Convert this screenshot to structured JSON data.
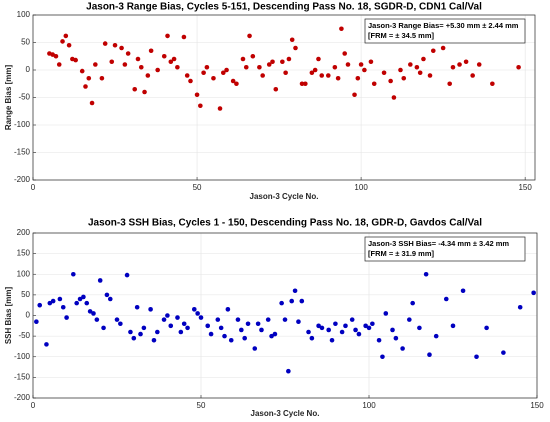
{
  "chart_data": [
    {
      "type": "scatter",
      "title": "Jason-3 Range Bias, Cycles 5-151, Descending Pass No. 18, SGDR-D, CDN1 Cal/Val",
      "x_label": "Jason-3 Cycle No.",
      "y_label": "Range Bias [mm]",
      "annotations": [
        "Jason-3 Range Bias= +5.30 mm ±  2.44 mm",
        "[FRM = ± 34.5 mm]"
      ],
      "color": "#c00000",
      "grid": true,
      "xlim": [
        0,
        153
      ],
      "xticks": [
        0,
        50,
        100,
        150
      ],
      "ylim": [
        -200,
        100
      ],
      "yticks": [
        -200,
        -150,
        -100,
        -50,
        0,
        50,
        100
      ],
      "x": [
        5,
        6,
        7,
        8,
        9,
        10,
        11,
        12,
        13,
        15,
        16,
        17,
        18,
        19,
        21,
        22,
        24,
        25,
        27,
        28,
        29,
        31,
        32,
        33,
        34,
        35,
        36,
        38,
        40,
        41,
        42,
        43,
        44,
        46,
        47,
        48,
        50,
        51,
        52,
        53,
        55,
        57,
        58,
        59,
        61,
        62,
        64,
        65,
        66,
        67,
        69,
        70,
        72,
        73,
        74,
        76,
        77,
        78,
        79,
        80,
        82,
        83,
        85,
        86,
        87,
        88,
        90,
        92,
        93,
        94,
        95,
        96,
        98,
        99,
        100,
        101,
        103,
        104,
        106,
        107,
        109,
        110,
        112,
        113,
        115,
        117,
        118,
        119,
        121,
        122,
        124,
        125,
        127,
        128,
        130,
        132,
        134,
        136,
        140,
        148
      ],
      "values": [
        30,
        28,
        25,
        10,
        52,
        62,
        45,
        20,
        18,
        -2,
        -30,
        -15,
        -60,
        10,
        -15,
        48,
        15,
        45,
        40,
        10,
        30,
        -35,
        20,
        5,
        -40,
        -10,
        35,
        0,
        25,
        62,
        15,
        20,
        5,
        60,
        -10,
        -20,
        -45,
        -65,
        -5,
        5,
        -15,
        -70,
        -5,
        0,
        -20,
        -25,
        20,
        5,
        62,
        25,
        5,
        -10,
        10,
        15,
        -35,
        15,
        -5,
        20,
        55,
        40,
        -25,
        -25,
        -5,
        0,
        20,
        -10,
        -10,
        5,
        -15,
        75,
        30,
        10,
        -45,
        -15,
        10,
        0,
        15,
        -25,
        60,
        -5,
        -20,
        -50,
        0,
        -15,
        10,
        5,
        -5,
        20,
        -10,
        35,
        55,
        40,
        -25,
        5,
        10,
        15,
        -10,
        10,
        -25,
        5
      ]
    },
    {
      "type": "scatter",
      "title": "Jason-3 SSH Bias, Cycles 1 - 150, Descending Pass No. 18, GDR-D, Gavdos Cal/Val",
      "x_label": "Jason-3 Cycle No.",
      "y_label": "SSH Bias [mm]",
      "annotations": [
        "Jason-3 SSH Bias= -4.34 mm ±  3.42 mm",
        "[FRM = ± 31.9 mm]"
      ],
      "color": "#0000c0",
      "grid": true,
      "xlim": [
        0,
        150
      ],
      "xticks": [
        0,
        50,
        100,
        150
      ],
      "ylim": [
        -200,
        200
      ],
      "yticks": [
        -200,
        -150,
        -100,
        -50,
        0,
        50,
        100,
        150,
        200
      ],
      "x": [
        1,
        2,
        4,
        5,
        6,
        8,
        9,
        10,
        12,
        13,
        14,
        15,
        16,
        17,
        18,
        19,
        20,
        21,
        22,
        23,
        25,
        26,
        28,
        29,
        30,
        31,
        32,
        33,
        35,
        36,
        37,
        39,
        40,
        41,
        43,
        44,
        45,
        46,
        48,
        49,
        50,
        52,
        53,
        55,
        56,
        57,
        58,
        59,
        61,
        62,
        63,
        64,
        66,
        67,
        68,
        70,
        71,
        72,
        74,
        75,
        76,
        77,
        78,
        79,
        80,
        82,
        83,
        85,
        86,
        88,
        89,
        90,
        92,
        93,
        95,
        96,
        97,
        99,
        100,
        101,
        103,
        104,
        105,
        107,
        108,
        110,
        112,
        113,
        115,
        117,
        118,
        120,
        123,
        125,
        128,
        132,
        135,
        140,
        145,
        149
      ],
      "values": [
        -15,
        25,
        -70,
        30,
        35,
        40,
        20,
        -5,
        100,
        30,
        40,
        45,
        30,
        10,
        5,
        -10,
        85,
        -30,
        50,
        40,
        -10,
        -20,
        98,
        -40,
        -55,
        20,
        -45,
        -30,
        15,
        -60,
        -40,
        -10,
        0,
        -25,
        -5,
        -40,
        -20,
        -30,
        15,
        5,
        -5,
        -25,
        -45,
        -10,
        -30,
        -50,
        15,
        -60,
        -10,
        -35,
        -55,
        -20,
        -80,
        -20,
        -35,
        -10,
        -50,
        -45,
        30,
        -10,
        -135,
        35,
        60,
        -15,
        35,
        -40,
        -55,
        -25,
        -30,
        -35,
        -60,
        -20,
        -40,
        -25,
        -10,
        -35,
        -45,
        -25,
        -30,
        -20,
        -60,
        -100,
        5,
        -35,
        -55,
        -80,
        -10,
        30,
        -30,
        100,
        -95,
        -50,
        40,
        -25,
        60,
        -100,
        -30,
        -90,
        20,
        55
      ]
    }
  ]
}
